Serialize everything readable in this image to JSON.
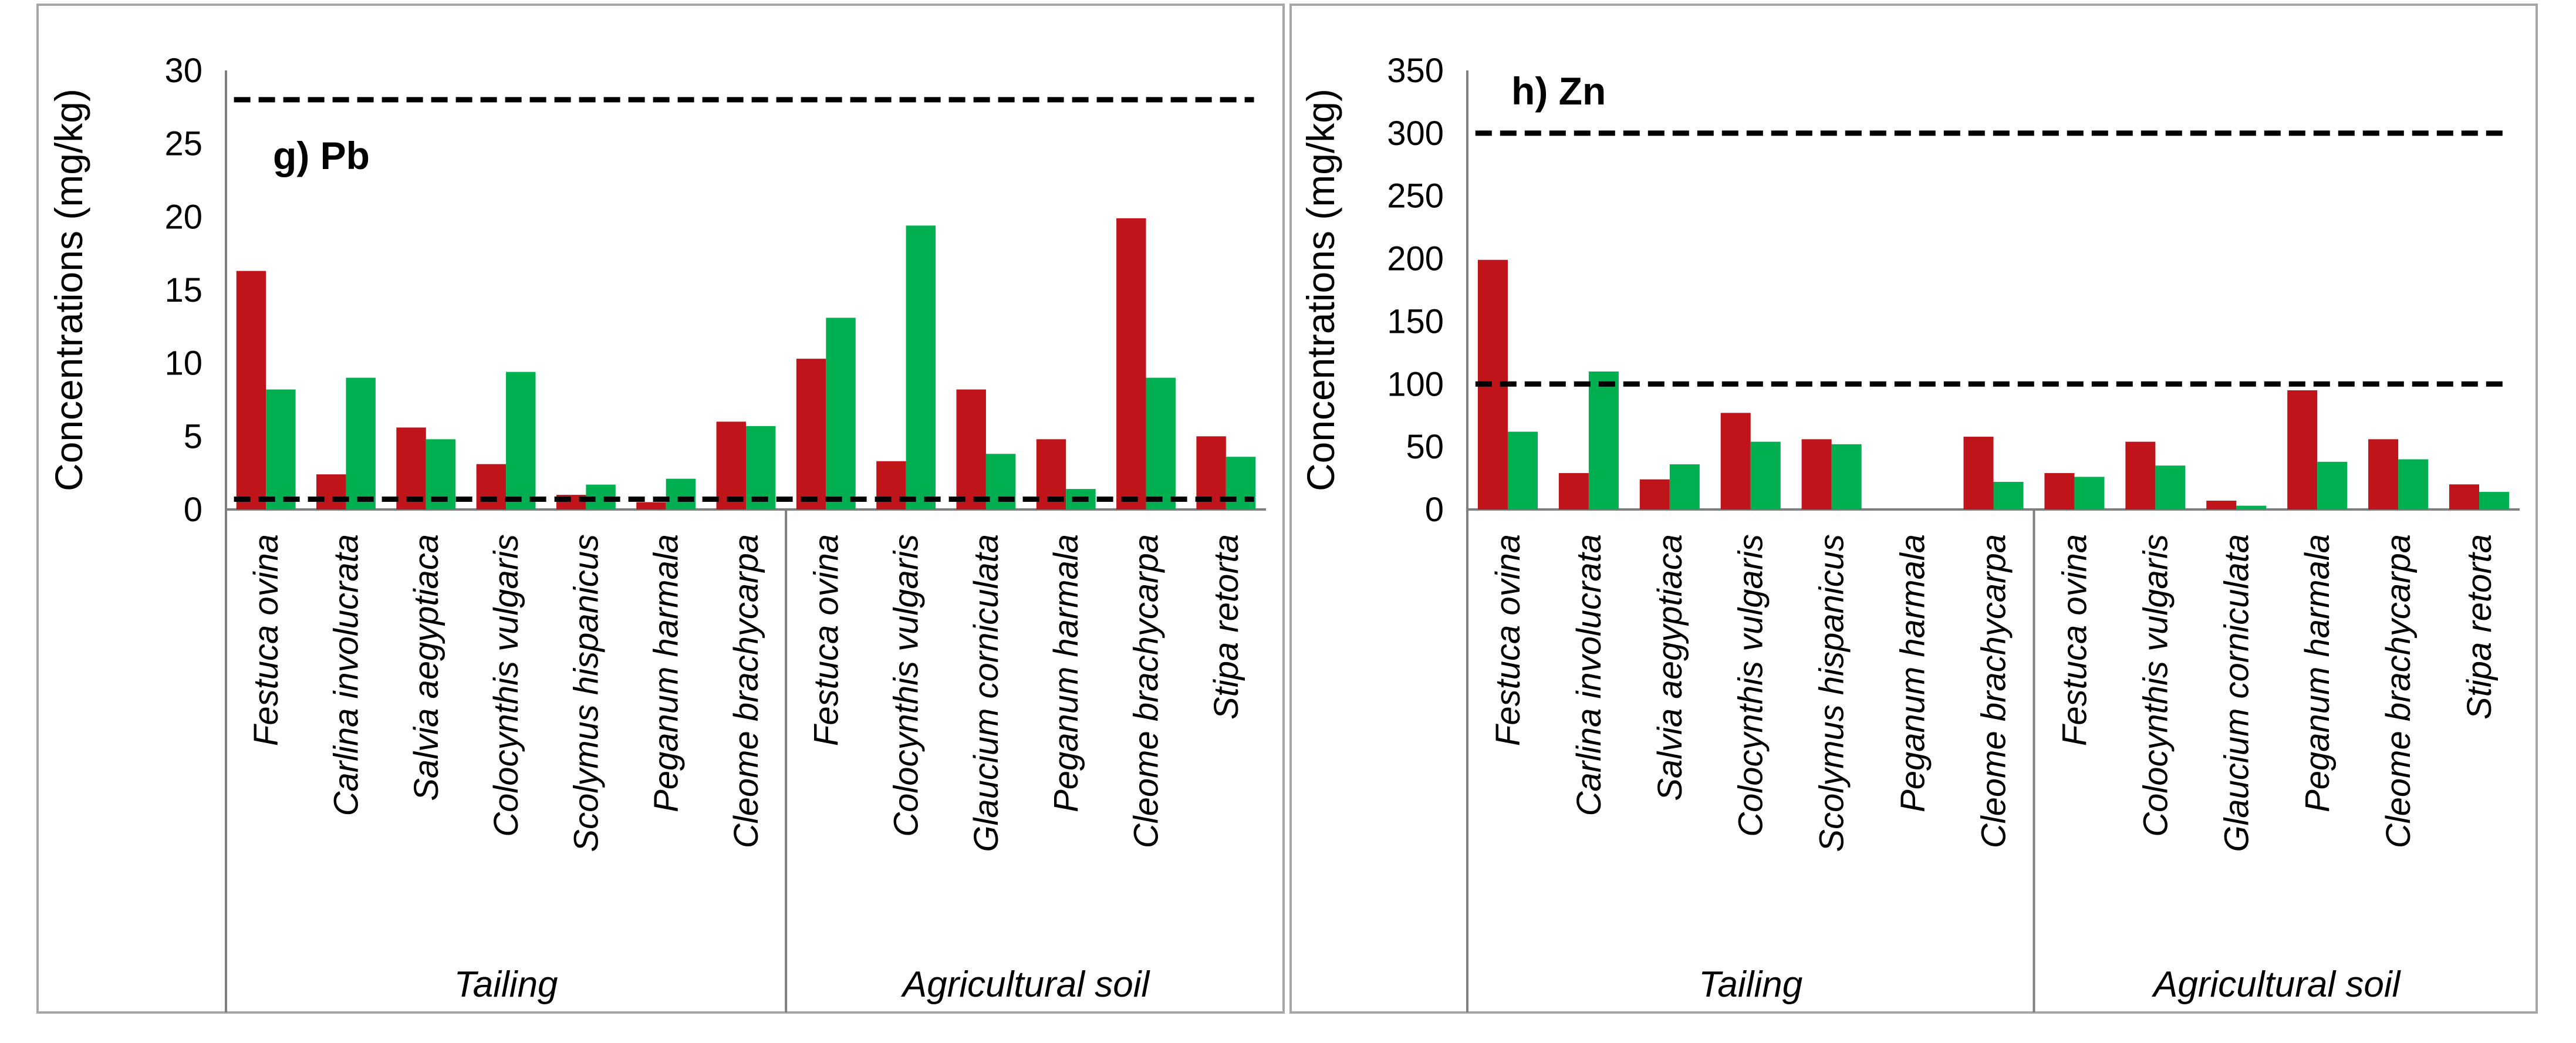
{
  "chart_data": [
    {
      "type": "bar",
      "title": "g) Pb",
      "ylabel": "Concentrations (mg/kg)",
      "xlabel": "",
      "ylim": [
        0,
        30
      ],
      "yticks": [
        "0",
        "5",
        "10",
        "15",
        "20",
        "25",
        "30"
      ],
      "categories": [
        "Festuca ovina",
        "Carlina involucrata",
        "Salvia aegyptiaca",
        "Colocynthis vulgaris",
        "Scolymus hispanicus",
        "Peganum harmala",
        "Cleome brachycarpa",
        "Festuca ovina",
        "Colocynthis vulgaris",
        "Glaucium corniculata",
        "Peganum harmala",
        "Cleome brachycarpa",
        "Stipa retorta"
      ],
      "groups": [
        {
          "label": "Tailing",
          "count": 7
        },
        {
          "label": "Agricultural soil",
          "count": 6
        }
      ],
      "series": [
        {
          "name": "red",
          "color": "#c0141b",
          "values": [
            16.3,
            2.4,
            5.6,
            3.1,
            1.0,
            0.5,
            6.0,
            10.3,
            3.3,
            8.2,
            4.8,
            19.9,
            5.0
          ]
        },
        {
          "name": "green",
          "color": "#00b050",
          "values": [
            8.2,
            9.0,
            4.8,
            9.4,
            1.7,
            2.1,
            5.7,
            13.1,
            19.4,
            3.8,
            1.4,
            9.0,
            3.6
          ]
        }
      ],
      "reference_lines": [
        28,
        0.7
      ]
    },
    {
      "type": "bar",
      "title": "h) Zn",
      "ylabel": "Concentrations (mg/kg)",
      "xlabel": "",
      "ylim": [
        0,
        350
      ],
      "yticks": [
        "0",
        "50",
        "100",
        "150",
        "200",
        "250",
        "300",
        "350"
      ],
      "categories": [
        "Festuca ovina",
        "Carlina involucrata",
        "Salvia aegyptiaca",
        "Colocynthis vulgaris",
        "Scolymus hispanicus",
        "Peganum harmala",
        "Cleome brachycarpa",
        "Festuca ovina",
        "Colocynthis vulgaris",
        "Glaucium corniculata",
        "Peganum harmala",
        "Cleome brachycarpa",
        "Stipa retorta"
      ],
      "groups": [
        {
          "label": "Tailing",
          "count": 7
        },
        {
          "label": "Agricultural soil",
          "count": 6
        }
      ],
      "series": [
        {
          "name": "red",
          "color": "#c0141b",
          "values": [
            199,
            29,
            24,
            77,
            56,
            0,
            58,
            29,
            54,
            7,
            95,
            56,
            20
          ]
        },
        {
          "name": "green",
          "color": "#00b050",
          "values": [
            62,
            110,
            36,
            54,
            52,
            0,
            22,
            26,
            35,
            3,
            38,
            40,
            14
          ]
        }
      ],
      "reference_lines": [
        300,
        100
      ]
    }
  ]
}
